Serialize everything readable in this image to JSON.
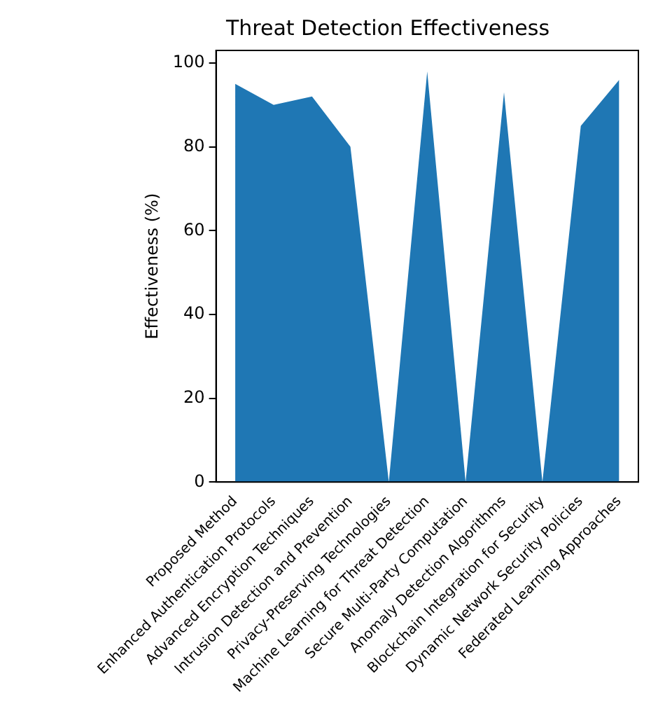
{
  "chart_data": {
    "type": "area",
    "title": "Threat Detection Effectiveness",
    "ylabel": "Effectiveness (%)",
    "categories": [
      "Proposed Method",
      "Enhanced Authentication Protocols",
      "Advanced Encryption Techniques",
      "Intrusion Detection and Prevention",
      "Privacy-Preserving Technologies",
      "Machine Learning for Threat Detection",
      "Secure Multi-Party Computation",
      "Anomaly Detection Algorithms",
      "Blockchain Integration for Security",
      "Dynamic Network Security Policies",
      "Federated Learning Approaches"
    ],
    "values": [
      95,
      90,
      92,
      80,
      0,
      98,
      0,
      93,
      0,
      85,
      96
    ],
    "color": "#1f77b4",
    "ylim": [
      0,
      103
    ],
    "yticks": [
      0,
      20,
      40,
      60,
      80,
      100
    ],
    "grid": false,
    "legend": false
  }
}
